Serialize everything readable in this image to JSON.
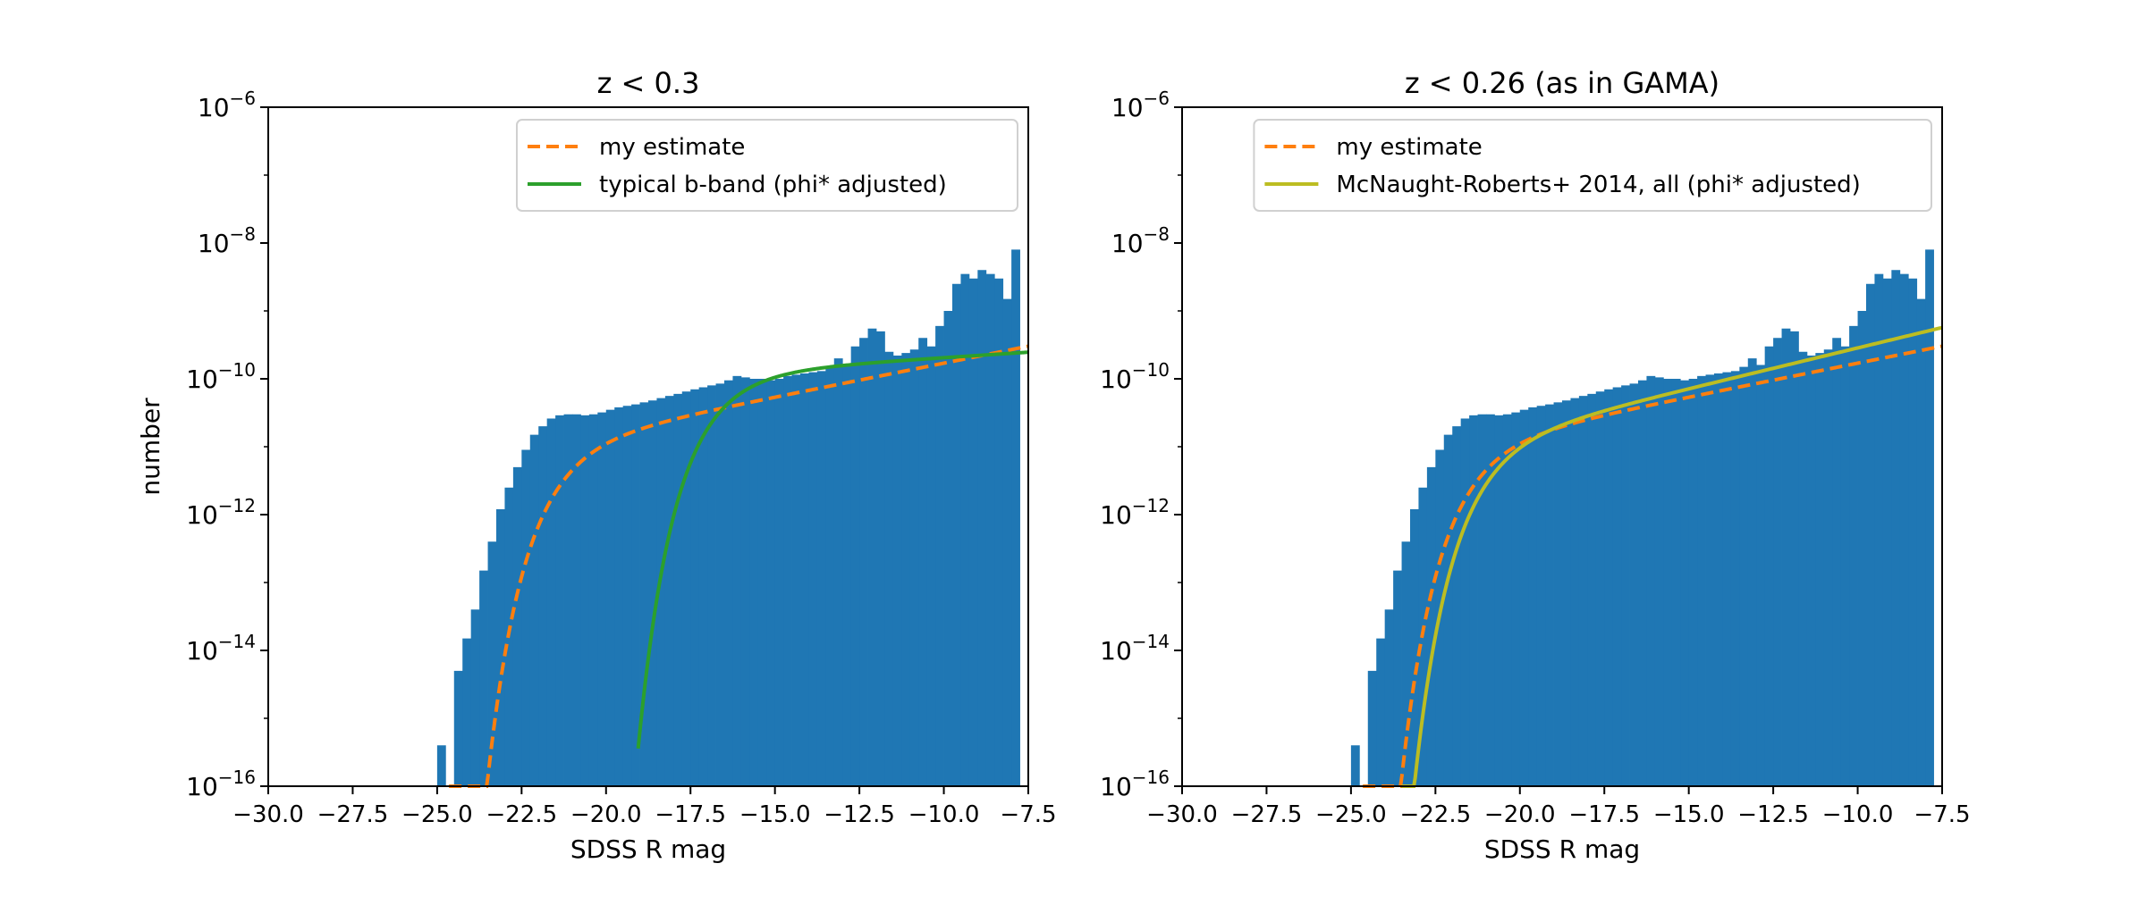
{
  "figure": {
    "ylabel": "number"
  },
  "chart_data": [
    {
      "type": "bar",
      "title": "z < 0.3",
      "xlabel": "SDSS R mag",
      "ylabel": "number",
      "xlim": [
        -30,
        -7.5
      ],
      "ylim": [
        1e-16,
        1e-06
      ],
      "yscale": "log",
      "xticks": [
        "−30.0",
        "−27.5",
        "−25.0",
        "−22.5",
        "−20.0",
        "−17.5",
        "−15.0",
        "−12.5",
        "−10.0",
        "−7.5"
      ],
      "yticks_exp": [
        "−16",
        "−14",
        "−12",
        "−10",
        "−8",
        "−6"
      ],
      "legend_position": "upper-right",
      "histogram": {
        "color": "#1f77b4",
        "bin_width": 0.25,
        "bins": [
          [
            -25.0,
            4e-16
          ],
          [
            -24.5,
            5e-15
          ],
          [
            -24.25,
            1.5e-14
          ],
          [
            -24.0,
            4e-14
          ],
          [
            -23.75,
            1.5e-13
          ],
          [
            -23.5,
            4e-13
          ],
          [
            -23.25,
            1.2e-12
          ],
          [
            -23.0,
            2.5e-12
          ],
          [
            -22.75,
            5e-12
          ],
          [
            -22.5,
            9e-12
          ],
          [
            -22.25,
            1.5e-11
          ],
          [
            -22.0,
            2e-11
          ],
          [
            -21.75,
            2.6e-11
          ],
          [
            -21.5,
            2.9e-11
          ],
          [
            -21.25,
            3e-11
          ],
          [
            -21.0,
            3e-11
          ],
          [
            -20.75,
            2.9e-11
          ],
          [
            -20.5,
            3e-11
          ],
          [
            -20.25,
            3.2e-11
          ],
          [
            -20.0,
            3.5e-11
          ],
          [
            -19.75,
            3.8e-11
          ],
          [
            -19.5,
            4e-11
          ],
          [
            -19.25,
            4.2e-11
          ],
          [
            -19.0,
            4.5e-11
          ],
          [
            -18.75,
            4.8e-11
          ],
          [
            -18.5,
            5.2e-11
          ],
          [
            -18.25,
            5.6e-11
          ],
          [
            -18.0,
            6e-11
          ],
          [
            -17.75,
            6.5e-11
          ],
          [
            -17.5,
            7e-11
          ],
          [
            -17.25,
            7.5e-11
          ],
          [
            -17.0,
            8e-11
          ],
          [
            -16.75,
            8.5e-11
          ],
          [
            -16.5,
            9.5e-11
          ],
          [
            -16.25,
            1.1e-10
          ],
          [
            -16.0,
            1.05e-10
          ],
          [
            -15.75,
            1e-10
          ],
          [
            -15.5,
            1e-10
          ],
          [
            -15.25,
            9.5e-11
          ],
          [
            -15.0,
            1e-10
          ],
          [
            -14.75,
            1.1e-10
          ],
          [
            -14.5,
            1.15e-10
          ],
          [
            -14.25,
            1.2e-10
          ],
          [
            -14.0,
            1.25e-10
          ],
          [
            -13.75,
            1.3e-10
          ],
          [
            -13.5,
            1.5e-10
          ],
          [
            -13.25,
            2e-10
          ],
          [
            -13.0,
            1.6e-10
          ],
          [
            -12.75,
            3e-10
          ],
          [
            -12.5,
            4e-10
          ],
          [
            -12.25,
            5.5e-10
          ],
          [
            -12.0,
            5e-10
          ],
          [
            -11.75,
            2.5e-10
          ],
          [
            -11.5,
            2.2e-10
          ],
          [
            -11.25,
            2.4e-10
          ],
          [
            -11.0,
            2.7e-10
          ],
          [
            -10.75,
            4e-10
          ],
          [
            -10.5,
            3e-10
          ],
          [
            -10.25,
            6e-10
          ],
          [
            -10.0,
            1e-09
          ],
          [
            -9.75,
            2.5e-09
          ],
          [
            -9.5,
            3.5e-09
          ],
          [
            -9.25,
            3e-09
          ],
          [
            -9.0,
            4e-09
          ],
          [
            -8.75,
            3.5e-09
          ],
          [
            -8.5,
            3e-09
          ],
          [
            -8.25,
            1.5e-09
          ],
          [
            -8.0,
            8e-09
          ]
        ]
      },
      "series": [
        {
          "name": "my estimate",
          "color": "#ff7f0e",
          "style": "dashed",
          "function": "schechter",
          "params": {
            "Mstar": -20.9,
            "alpha": -1.25,
            "phistar": 1.5e-11
          },
          "xrange": [
            -24.65,
            -7.5
          ]
        },
        {
          "name": "typical b-band (phi* adjusted)",
          "color": "#2ca02c",
          "style": "solid",
          "function": "schechter",
          "params": {
            "Mstar": -16.3,
            "alpha": -1.08,
            "phistar": 1.4e-10
          },
          "xrange": [
            -19.05,
            -7.5
          ]
        }
      ]
    },
    {
      "type": "bar",
      "title": "z < 0.26 (as in GAMA)",
      "xlabel": "SDSS R mag",
      "ylabel": "",
      "xlim": [
        -30,
        -7.5
      ],
      "ylim": [
        1e-16,
        1e-06
      ],
      "yscale": "log",
      "xticks": [
        "−30.0",
        "−27.5",
        "−25.0",
        "−22.5",
        "−20.0",
        "−17.5",
        "−15.0",
        "−12.5",
        "−10.0",
        "−7.5"
      ],
      "yticks_exp": [
        "−16",
        "−14",
        "−12",
        "−10",
        "−8",
        "−6"
      ],
      "legend_position": "upper-right",
      "histogram": {
        "color": "#1f77b4",
        "bin_width": 0.25,
        "bins": [
          [
            -25.0,
            4e-16
          ],
          [
            -24.5,
            5e-15
          ],
          [
            -24.25,
            1.5e-14
          ],
          [
            -24.0,
            4e-14
          ],
          [
            -23.75,
            1.5e-13
          ],
          [
            -23.5,
            4e-13
          ],
          [
            -23.25,
            1.2e-12
          ],
          [
            -23.0,
            2.5e-12
          ],
          [
            -22.75,
            5e-12
          ],
          [
            -22.5,
            9e-12
          ],
          [
            -22.25,
            1.5e-11
          ],
          [
            -22.0,
            2e-11
          ],
          [
            -21.75,
            2.6e-11
          ],
          [
            -21.5,
            2.9e-11
          ],
          [
            -21.25,
            3e-11
          ],
          [
            -21.0,
            3e-11
          ],
          [
            -20.75,
            2.9e-11
          ],
          [
            -20.5,
            3e-11
          ],
          [
            -20.25,
            3.2e-11
          ],
          [
            -20.0,
            3.5e-11
          ],
          [
            -19.75,
            3.8e-11
          ],
          [
            -19.5,
            4e-11
          ],
          [
            -19.25,
            4.2e-11
          ],
          [
            -19.0,
            4.5e-11
          ],
          [
            -18.75,
            4.8e-11
          ],
          [
            -18.5,
            5.2e-11
          ],
          [
            -18.25,
            5.6e-11
          ],
          [
            -18.0,
            6e-11
          ],
          [
            -17.75,
            6.5e-11
          ],
          [
            -17.5,
            7e-11
          ],
          [
            -17.25,
            7.5e-11
          ],
          [
            -17.0,
            8e-11
          ],
          [
            -16.75,
            8.5e-11
          ],
          [
            -16.5,
            9.5e-11
          ],
          [
            -16.25,
            1.1e-10
          ],
          [
            -16.0,
            1.05e-10
          ],
          [
            -15.75,
            1e-10
          ],
          [
            -15.5,
            1e-10
          ],
          [
            -15.25,
            9.5e-11
          ],
          [
            -15.0,
            1e-10
          ],
          [
            -14.75,
            1.1e-10
          ],
          [
            -14.5,
            1.15e-10
          ],
          [
            -14.25,
            1.2e-10
          ],
          [
            -14.0,
            1.25e-10
          ],
          [
            -13.75,
            1.3e-10
          ],
          [
            -13.5,
            1.5e-10
          ],
          [
            -13.25,
            2e-10
          ],
          [
            -13.0,
            1.6e-10
          ],
          [
            -12.75,
            3e-10
          ],
          [
            -12.5,
            4e-10
          ],
          [
            -12.25,
            5.5e-10
          ],
          [
            -12.0,
            5e-10
          ],
          [
            -11.75,
            2.5e-10
          ],
          [
            -11.5,
            2.2e-10
          ],
          [
            -11.25,
            2.4e-10
          ],
          [
            -11.0,
            2.7e-10
          ],
          [
            -10.75,
            4e-10
          ],
          [
            -10.5,
            3e-10
          ],
          [
            -10.25,
            6e-10
          ],
          [
            -10.0,
            1e-09
          ],
          [
            -9.75,
            2.5e-09
          ],
          [
            -9.5,
            3.5e-09
          ],
          [
            -9.25,
            3e-09
          ],
          [
            -9.0,
            4e-09
          ],
          [
            -8.75,
            3.5e-09
          ],
          [
            -8.5,
            3e-09
          ],
          [
            -8.25,
            1.5e-09
          ],
          [
            -8.0,
            8e-09
          ]
        ]
      },
      "series": [
        {
          "name": "my estimate",
          "color": "#ff7f0e",
          "style": "dashed",
          "function": "schechter",
          "params": {
            "Mstar": -20.9,
            "alpha": -1.25,
            "phistar": 1.5e-11
          },
          "xrange": [
            -24.65,
            -7.5
          ]
        },
        {
          "name": "McNaught-Roberts+ 2014, all (phi* adjusted)",
          "color": "#bcbd22",
          "style": "solid",
          "function": "schechter",
          "params": {
            "Mstar": -20.5,
            "alpha": -1.3,
            "phistar": 1.7e-11
          },
          "xrange": [
            -23.5,
            -7.5
          ]
        }
      ]
    }
  ]
}
